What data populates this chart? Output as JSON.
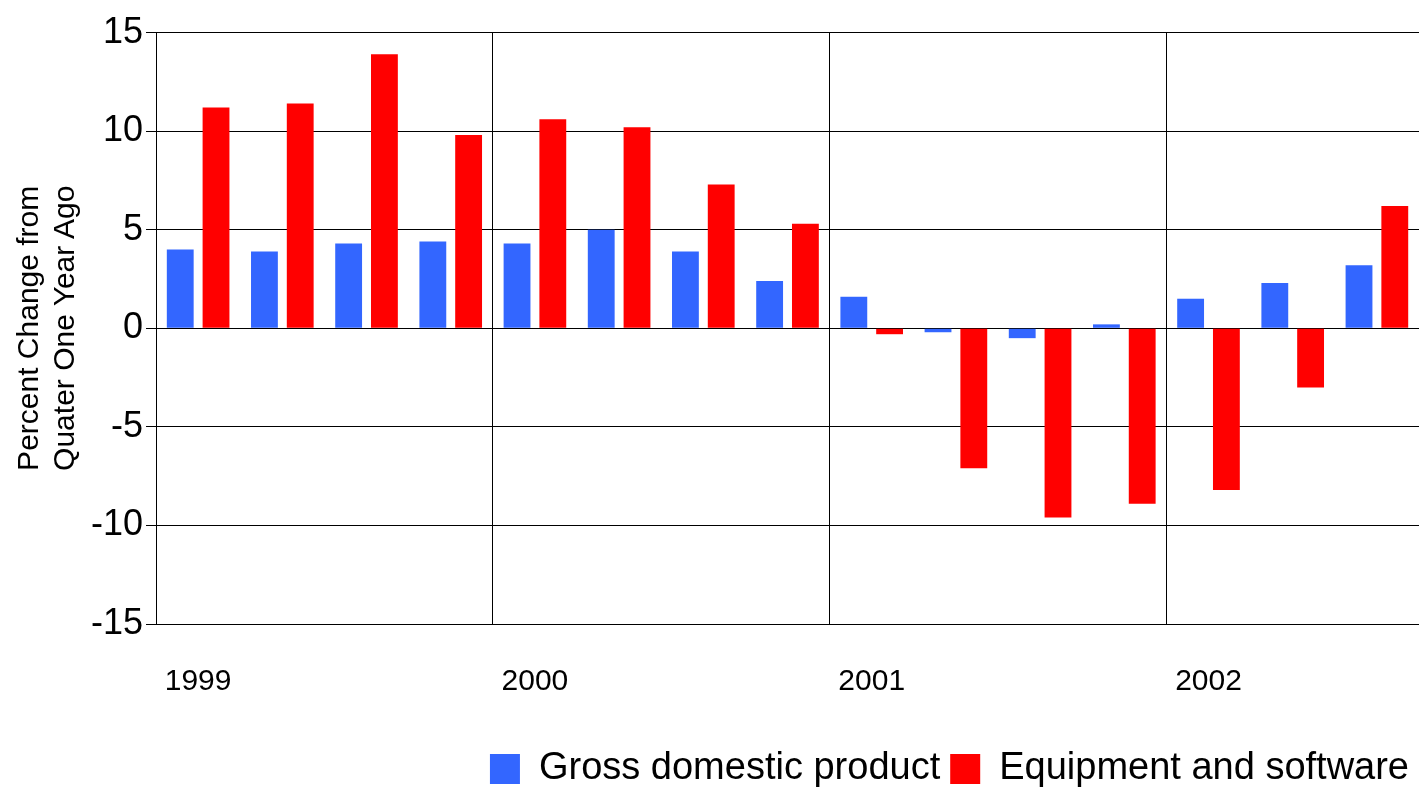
{
  "chart_data": {
    "type": "bar",
    "ylabel": "Percent Change from Quater One Year Ago",
    "categories": [
      "1999",
      null,
      null,
      null,
      "2000",
      null,
      null,
      null,
      "2001",
      null,
      null,
      null,
      "2002",
      null,
      null
    ],
    "series": [
      {
        "name": "Gross domestic product",
        "color": "#3366ff",
        "values": [
          4.0,
          3.9,
          4.3,
          4.4,
          4.3,
          5.0,
          3.9,
          2.4,
          1.6,
          -0.2,
          -0.5,
          0.2,
          1.5,
          2.3,
          3.2
        ]
      },
      {
        "name": "Equipment and software",
        "color": "#ff0000",
        "values": [
          11.2,
          11.4,
          13.9,
          9.8,
          10.6,
          10.2,
          7.3,
          5.3,
          -0.3,
          -7.1,
          -9.6,
          -8.9,
          -8.2,
          -3.0,
          6.2
        ]
      }
    ],
    "ylim": [
      -15,
      15
    ],
    "yticks": [
      -15,
      -10,
      -5,
      0,
      5,
      10,
      15
    ],
    "grid": true,
    "legend": "bottom"
  }
}
